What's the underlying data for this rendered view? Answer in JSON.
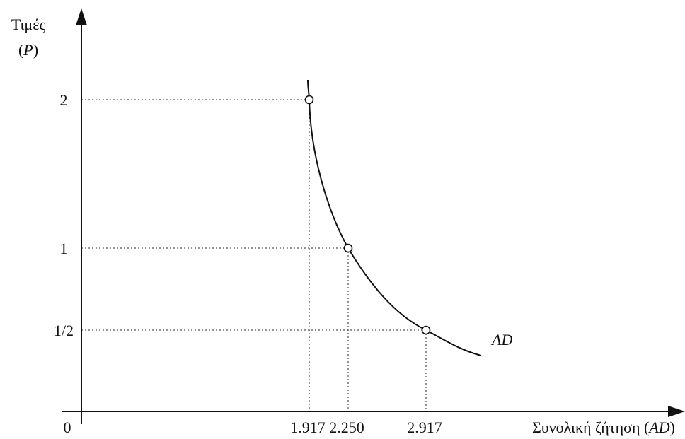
{
  "chart_data": {
    "type": "line",
    "title": "",
    "ylabel": "Τιμές",
    "ylabel_symbol": "P",
    "xlabel_text": "Συνολική ζήτηση (",
    "xlabel_symbol": "AD",
    "xlabel_close": ")",
    "origin_label": "0",
    "curve_label": "AD",
    "y_ticks": [
      {
        "value": 2,
        "label": "2"
      },
      {
        "value": 1,
        "label": "1"
      },
      {
        "value": 0.5,
        "label": "1/2"
      }
    ],
    "x_ticks": [
      {
        "value": 1.917,
        "label": "1.917"
      },
      {
        "value": 2.25,
        "label": "2.250"
      },
      {
        "value": 2.917,
        "label": "2.917"
      }
    ],
    "series": [
      {
        "points": [
          {
            "x": 1.917,
            "y": 2
          },
          {
            "x": 2.25,
            "y": 1
          },
          {
            "x": 2.917,
            "y": 0.5
          }
        ]
      }
    ],
    "grid": false,
    "guide_lines": "dotted"
  }
}
